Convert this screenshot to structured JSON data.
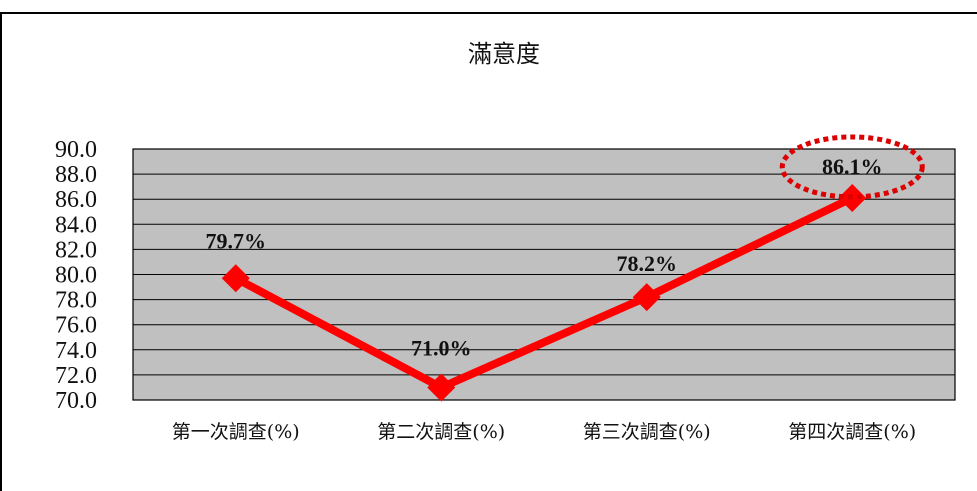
{
  "chart_data": {
    "type": "line",
    "title": "滿意度",
    "xlabel": "",
    "ylabel": "",
    "categories": [
      "第一次調查(%)",
      "第二次調查(%)",
      "第三次調查(%)",
      "第四次調查(%)"
    ],
    "values": [
      79.7,
      71.0,
      78.2,
      86.1
    ],
    "data_labels": [
      "79.7%",
      "71.0%",
      "78.2%",
      "86.1%"
    ],
    "ylim": [
      70,
      90
    ],
    "yticks": [
      "90.0",
      "88.0",
      "86.0",
      "84.0",
      "82.0",
      "80.0",
      "78.0",
      "76.0",
      "74.0",
      "72.0",
      "70.0"
    ],
    "grid": true,
    "highlighted_label_index": 3,
    "colors": {
      "line": "#ff0000",
      "marker": "#ff0000",
      "plot_background": "#c0c0c0",
      "highlight_circle": "#dd0000",
      "gridline": "#000000"
    }
  }
}
